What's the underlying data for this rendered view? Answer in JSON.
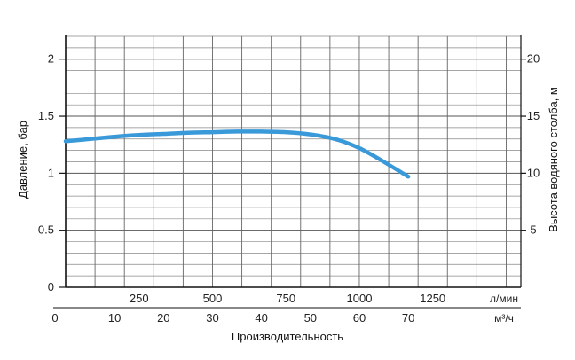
{
  "chart_data": {
    "type": "line",
    "left_axis": {
      "label": "Давление, бар",
      "ticks": [
        "0",
        "0.5",
        "1",
        "1.5",
        "2"
      ],
      "ylim": [
        0,
        2.2
      ]
    },
    "right_axis": {
      "label": "Высота водяного столба, м",
      "ticks": [
        "5",
        "10",
        "15",
        "20"
      ],
      "ylim": [
        0,
        22
      ]
    },
    "x_axis_top": {
      "unit": "л/мин",
      "ticks": [
        "250",
        "500",
        "750",
        "1000",
        "1250"
      ]
    },
    "x_axis_bottom": {
      "unit": "м³/ч",
      "ticks": [
        "0",
        "10",
        "20",
        "30",
        "40",
        "50",
        "60",
        "70"
      ],
      "xlim": [
        0,
        93
      ]
    },
    "xlabel": "Производительность",
    "grid": true,
    "series": [
      {
        "color": "#3a9ad9",
        "x": [
          0,
          5,
          10,
          15,
          20,
          25,
          30,
          35,
          40,
          45,
          50,
          55,
          60,
          65,
          70
        ],
        "y": [
          1.28,
          1.3,
          1.32,
          1.335,
          1.345,
          1.355,
          1.36,
          1.365,
          1.365,
          1.36,
          1.34,
          1.3,
          1.22,
          1.1,
          0.97
        ]
      }
    ]
  }
}
